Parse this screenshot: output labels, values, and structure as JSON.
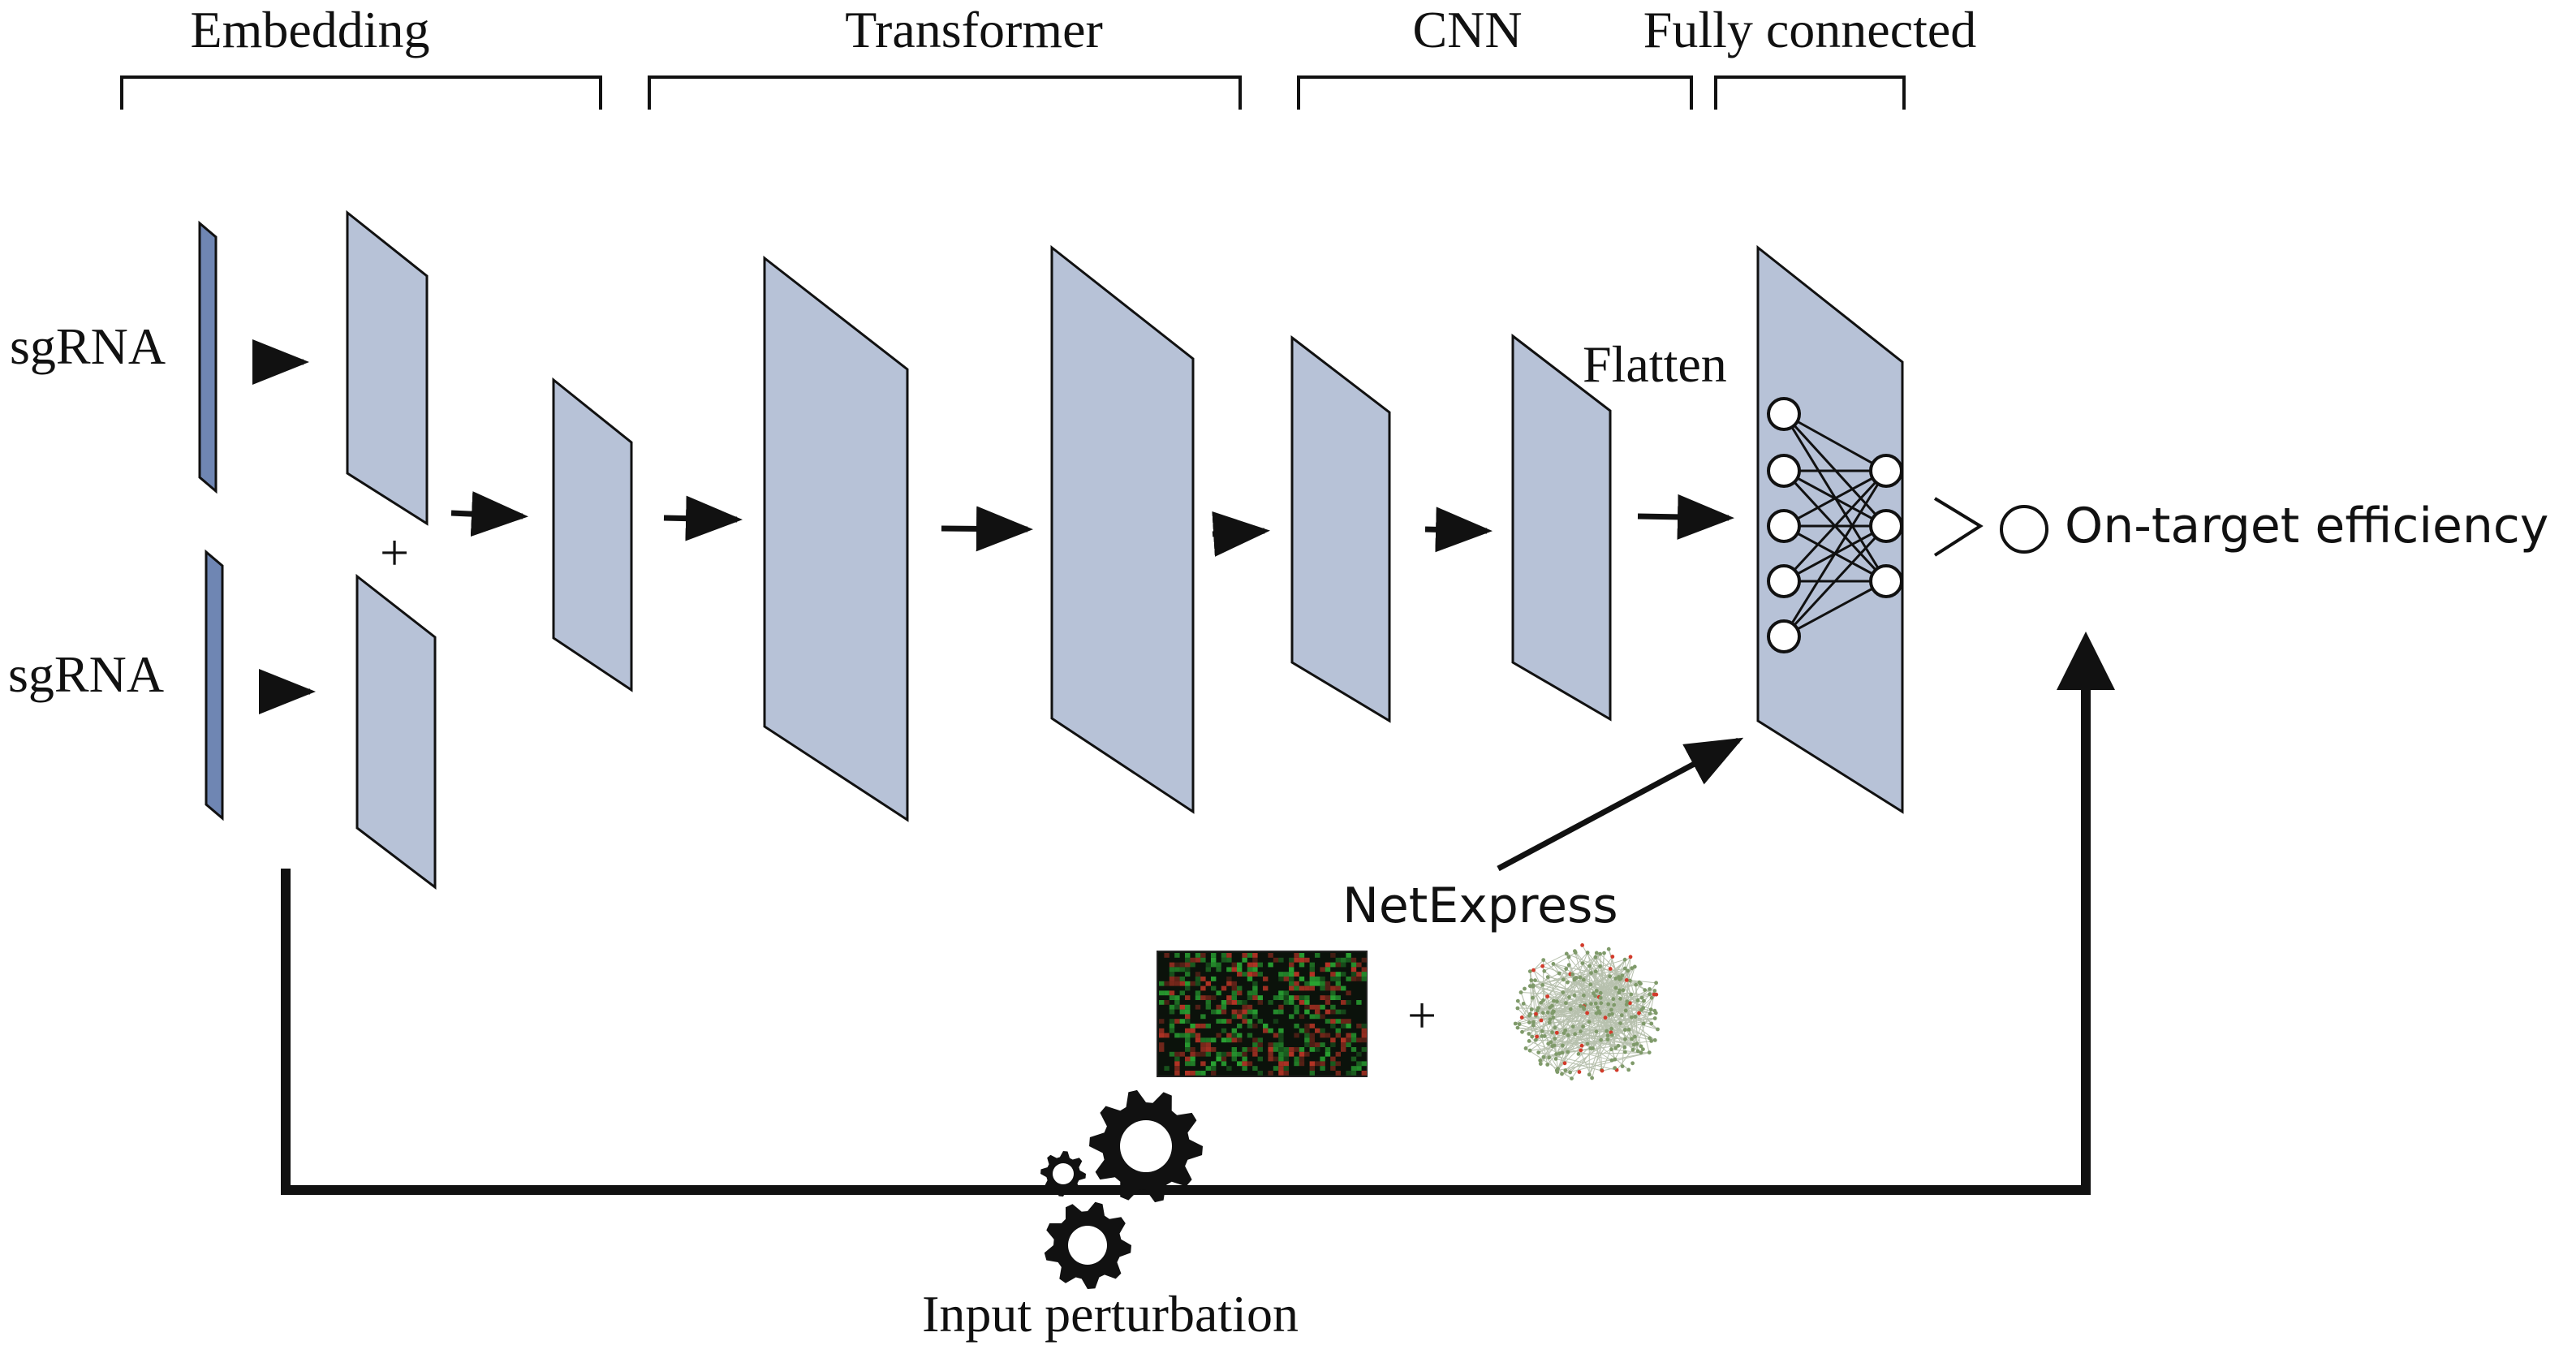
{
  "sections": {
    "embedding": "Embedding",
    "transformer": "Transformer",
    "cnn": "CNN",
    "fully_connected": "Fully connected"
  },
  "inputs": {
    "sgrna_top": "sgRNA",
    "sgrna_bottom": "sgRNA"
  },
  "operators": {
    "embedding_plus": "+",
    "netexpress_plus": "+"
  },
  "labels": {
    "flatten": "Flatten",
    "output": "On-target efficiency",
    "netexpress": "NetExpress",
    "input_perturbation": "Input perturbation"
  },
  "icons": {
    "gears": "gears-icon",
    "heatmap": "expression-heatmap-image",
    "network": "gene-network-image"
  },
  "colors": {
    "layer_fill": "#b7c2d7",
    "input_bar_fill": "#6f86b3",
    "stroke": "#111111",
    "heatmap_bg": "#0b120b",
    "heatmap_green": "#2fbf3a",
    "heatmap_red": "#d23a2a",
    "network_node": "#7f9a6a"
  }
}
